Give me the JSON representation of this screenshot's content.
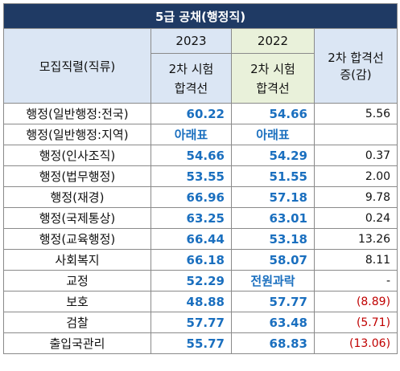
{
  "title": "5급 공채(행정직)",
  "header": {
    "category_label": "모집직렬(직류)",
    "year_2023": "2023",
    "year_2022": "2022",
    "sub_label_line1": "2차 시험",
    "sub_label_line2": "합격선",
    "diff_line1": "2차 합격선",
    "diff_line2": "증(감)"
  },
  "rows": [
    {
      "category": "행정(일반행정:전국)",
      "v2023": "60.22",
      "v2022": "54.66",
      "diff": "5.56",
      "neg": false
    },
    {
      "category": "행정(일반행정:지역)",
      "v2023": "아래표",
      "v2022": "아래표",
      "diff": "",
      "neg": false
    },
    {
      "category": "행정(인사조직)",
      "v2023": "54.66",
      "v2022": "54.29",
      "diff": "0.37",
      "neg": false
    },
    {
      "category": "행정(법무행정)",
      "v2023": "53.55",
      "v2022": "51.55",
      "diff": "2.00",
      "neg": false
    },
    {
      "category": "행정(재경)",
      "v2023": "66.96",
      "v2022": "57.18",
      "diff": "9.78",
      "neg": false
    },
    {
      "category": "행정(국제통상)",
      "v2023": "63.25",
      "v2022": "63.01",
      "diff": "0.24",
      "neg": false
    },
    {
      "category": "행정(교육행정)",
      "v2023": "66.44",
      "v2022": "53.18",
      "diff": "13.26",
      "neg": false
    },
    {
      "category": "사회복지",
      "v2023": "66.18",
      "v2022": "58.07",
      "diff": "8.11",
      "neg": false
    },
    {
      "category": "교정",
      "v2023": "52.29",
      "v2022": "전원과락",
      "diff": "-",
      "neg": false
    },
    {
      "category": "보호",
      "v2023": "48.88",
      "v2022": "57.77",
      "diff": "(8.89)",
      "neg": true
    },
    {
      "category": "검찰",
      "v2023": "57.77",
      "v2022": "63.48",
      "diff": "(5.71)",
      "neg": true
    },
    {
      "category": "출입국관리",
      "v2023": "55.77",
      "v2022": "68.83",
      "diff": "(13.06)",
      "neg": true
    }
  ]
}
